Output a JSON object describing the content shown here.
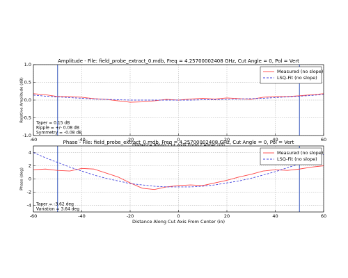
{
  "chart_data": [
    {
      "type": "line",
      "title": "Amplitude - File: field_probe_extract_0.mdb, Freq = 4.25700002408 GHz, Cut Angle = 0, Pol = Vert",
      "xlabel": "Distance Along Cut Axis From Center (in)",
      "ylabel": "Relative Amplitude (dB)",
      "x": [
        -60,
        -55,
        -50,
        -45,
        -40,
        -35,
        -30,
        -25,
        -20,
        -15,
        -10,
        -5,
        0,
        5,
        10,
        15,
        20,
        25,
        30,
        35,
        40,
        45,
        50,
        55,
        60
      ],
      "series": [
        {
          "name": "Measured (no slope)",
          "color": "#ff4444",
          "linestyle": "solid",
          "values": [
            0.18,
            0.15,
            0.1,
            0.1,
            0.08,
            0.04,
            0.02,
            -0.02,
            -0.06,
            -0.05,
            -0.02,
            0.02,
            0.0,
            0.03,
            0.05,
            0.03,
            0.06,
            0.04,
            0.02,
            0.08,
            0.1,
            0.1,
            0.12,
            0.15,
            0.18
          ]
        },
        {
          "name": "LSQ-Fit (no slope)",
          "color": "#4444dd",
          "linestyle": "dashed",
          "values": [
            0.14,
            0.11,
            0.09,
            0.07,
            0.05,
            0.03,
            0.02,
            0.01,
            0.0,
            0.0,
            0.0,
            0.0,
            0.0,
            0.0,
            0.01,
            0.01,
            0.02,
            0.03,
            0.04,
            0.05,
            0.07,
            0.09,
            0.11,
            0.13,
            0.16
          ]
        }
      ],
      "vlines": [
        -50,
        50
      ],
      "vline_color": "#3355bb",
      "xlim": [
        -60,
        60
      ],
      "xticks": [
        -60,
        -40,
        -20,
        0,
        20,
        40,
        60
      ],
      "ylim": [
        -1,
        1
      ],
      "yticks": [
        {
          "value": -1,
          "label": "-1.0"
        },
        {
          "value": -0.5,
          "label": "-0.5"
        },
        {
          "value": 0,
          "label": "0.0"
        },
        {
          "value": 0.5,
          "label": "0.5"
        },
        {
          "value": 1,
          "label": "1.0"
        }
      ],
      "grid": true,
      "legend": "upper right",
      "annotations": [
        "Taper = 0.15 dB",
        "Ripple = +/- 0.08 dB",
        "Symmetry = -0.08 dB"
      ]
    },
    {
      "type": "line",
      "title": "Phase - File: field_probe_extract_0.mdb, Freq = 4.25700002408 GHz, Cut Angle = 0, Pol = Vert",
      "xlabel": "Distance Along Cut Axis From Center (in)",
      "ylabel": "Phase (deg)",
      "x": [
        -60,
        -55,
        -50,
        -45,
        -40,
        -35,
        -30,
        -25,
        -20,
        -15,
        -10,
        -5,
        0,
        5,
        10,
        15,
        20,
        25,
        30,
        35,
        40,
        45,
        50,
        55,
        60
      ],
      "series": [
        {
          "name": "Measured (no slope)",
          "color": "#ff4444",
          "linestyle": "solid",
          "values": [
            1.4,
            1.5,
            1.3,
            1.2,
            1.6,
            1.5,
            0.9,
            0.3,
            -0.6,
            -1.4,
            -1.6,
            -1.2,
            -1.0,
            -0.9,
            -1.0,
            -0.6,
            -0.2,
            0.3,
            0.7,
            1.2,
            1.4,
            1.3,
            1.5,
            1.8,
            2.0
          ]
        },
        {
          "name": "LSQ-Fit (no slope)",
          "color": "#4444dd",
          "linestyle": "dashed",
          "values": [
            4.0,
            3.2,
            2.5,
            1.8,
            1.2,
            0.6,
            0.1,
            -0.3,
            -0.7,
            -0.9,
            -1.1,
            -1.2,
            -1.2,
            -1.2,
            -1.1,
            -0.9,
            -0.6,
            -0.3,
            0.1,
            0.6,
            1.1,
            1.7,
            2.3,
            3.0,
            3.7
          ]
        }
      ],
      "vlines": [
        -50,
        50
      ],
      "vline_color": "#3355bb",
      "xlim": [
        -60,
        60
      ],
      "xticks": [
        -60,
        -40,
        -20,
        0,
        20,
        40,
        60
      ],
      "ylim": [
        -5,
        5
      ],
      "yticks": [
        -4,
        -2,
        0,
        2,
        4
      ],
      "grid": true,
      "legend": "upper right",
      "annotations": [
        "Taper = -3.62 deg",
        "Variation = 3.64 deg"
      ]
    }
  ]
}
